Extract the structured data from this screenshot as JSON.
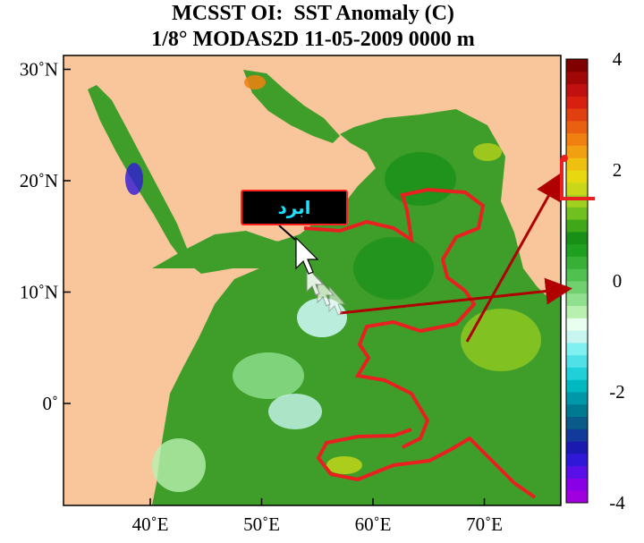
{
  "title": "MCSST OI:  SST Anomaly (C)",
  "subtitle": "1/8° MODAS2D 11-05-2009 0000 m",
  "map": {
    "lat_ticks": [
      {
        "value": 30,
        "label": "30˚N"
      },
      {
        "value": 20,
        "label": "20˚N"
      },
      {
        "value": 10,
        "label": "10˚N"
      },
      {
        "value": 0,
        "label": "0˚"
      }
    ],
    "lon_ticks": [
      {
        "value": 40,
        "label": "40˚E"
      },
      {
        "value": 50,
        "label": "50˚E"
      },
      {
        "value": 60,
        "label": "60˚E"
      },
      {
        "value": 70,
        "label": "70˚E"
      }
    ],
    "land_color": "#f8c69a",
    "ocean_color": "#3f9e2a",
    "contour_color": "#e82020"
  },
  "colorbar": {
    "min": -4,
    "max": 4,
    "tick_labels": [
      {
        "value": 4,
        "label": "4"
      },
      {
        "value": 2,
        "label": "2"
      },
      {
        "value": 0,
        "label": "0"
      },
      {
        "value": -2,
        "label": "-2"
      },
      {
        "value": -4,
        "label": "-4"
      }
    ],
    "colors": [
      "#a000e0",
      "#8a00e6",
      "#5a0fe8",
      "#3018d8",
      "#1a1ab0",
      "#123a9a",
      "#0a5a8a",
      "#007a90",
      "#0098a8",
      "#00b8c0",
      "#20d0d8",
      "#50e0e8",
      "#80f0f0",
      "#c8f5f0",
      "#e8fff0",
      "#b8f0b0",
      "#90e090",
      "#70d070",
      "#50c050",
      "#38b038",
      "#20a020",
      "#189018",
      "#40a818",
      "#70c020",
      "#a0d020",
      "#c8d818",
      "#e8d810",
      "#f0c010",
      "#f0a010",
      "#f08010",
      "#e86010",
      "#e04010",
      "#d82010",
      "#c01010",
      "#a00808",
      "#800000"
    ]
  },
  "annotation": {
    "label": "ابرد",
    "arrow_color": "#b00000",
    "callout_bg": "#000000",
    "callout_text_color": "#20e0ff"
  }
}
